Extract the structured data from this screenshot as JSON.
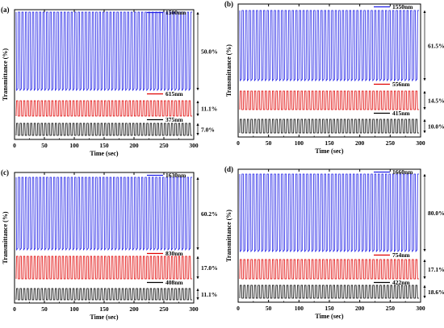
{
  "chart_data": [
    {
      "type": "line",
      "panel_label": "(a)",
      "xlabel": "Time (sec)",
      "ylabel": "Transmittance (%)",
      "xlim": [
        0,
        300
      ],
      "xticks": [
        "0",
        "50",
        "100",
        "150",
        "200",
        "250",
        "300"
      ],
      "cycles": 50,
      "series": [
        {
          "name": "1500nm",
          "color": "#1f1fe6",
          "modulation": "50.0%"
        },
        {
          "name": "615nm",
          "color": "#e00000",
          "modulation": "11.1%"
        },
        {
          "name": "375nm",
          "color": "#000000",
          "modulation": "7.0%"
        }
      ]
    },
    {
      "type": "line",
      "panel_label": "(b)",
      "xlabel": "Time (sec)",
      "ylabel": "Transmittance (%)",
      "xlim": [
        0,
        300
      ],
      "xticks": [
        "0",
        "50",
        "100",
        "150",
        "200",
        "250",
        "300"
      ],
      "cycles": 50,
      "series": [
        {
          "name": "1550nm",
          "color": "#1f1fe6",
          "modulation": "61.5%"
        },
        {
          "name": "556nm",
          "color": "#e00000",
          "modulation": "14.5%"
        },
        {
          "name": "415nm",
          "color": "#000000",
          "modulation": "10.0%"
        }
      ]
    },
    {
      "type": "line",
      "panel_label": "(c)",
      "xlabel": "Time (sec)",
      "ylabel": "Transmittance (%)",
      "xlim": [
        0,
        300
      ],
      "xticks": [
        "0",
        "50",
        "100",
        "150",
        "200",
        "250",
        "300"
      ],
      "cycles": 50,
      "series": [
        {
          "name": "1630nm",
          "color": "#1f1fe6",
          "modulation": "60.2%"
        },
        {
          "name": "830nm",
          "color": "#e00000",
          "modulation": "17.0%"
        },
        {
          "name": "408nm",
          "color": "#000000",
          "modulation": "11.1%"
        }
      ]
    },
    {
      "type": "line",
      "panel_label": "(d)",
      "xlabel": "Time (sec)",
      "ylabel": "Transmittance (%)",
      "xlim": [
        0,
        300
      ],
      "xticks": [
        "0",
        "50",
        "100",
        "150",
        "200",
        "250",
        "300"
      ],
      "cycles": 50,
      "series": [
        {
          "name": "1660nm",
          "color": "#1f1fe6",
          "modulation": "80.0%"
        },
        {
          "name": "754nm",
          "color": "#e00000",
          "modulation": "17.1%"
        },
        {
          "name": "422nm",
          "color": "#000000",
          "modulation": "18.6%"
        }
      ]
    }
  ]
}
